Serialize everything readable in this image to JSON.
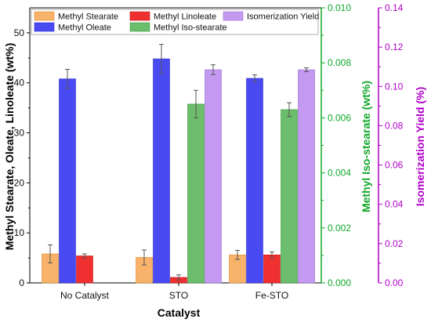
{
  "chart_data": {
    "type": "bar",
    "xlabel": "Catalyst",
    "categories": [
      "No Catalyst",
      "STO",
      "Fe-STO"
    ],
    "axes": {
      "left": {
        "label": "Methyl Stearate, Oleate, Linoleate (wt%)",
        "ylim": [
          0,
          55
        ],
        "ticks": [
          "0",
          "10",
          "20",
          "30",
          "40",
          "50"
        ],
        "tick_values": [
          0,
          10,
          20,
          30,
          40,
          50
        ],
        "color": "#000000"
      },
      "right1": {
        "label": "Methyl Iso-stearate (wt%)",
        "ylim": [
          0,
          0.01
        ],
        "ticks": [
          "0.000",
          "0.002",
          "0.004",
          "0.006",
          "0.008",
          "0.010"
        ],
        "tick_values": [
          0,
          0.002,
          0.004,
          0.006,
          0.008,
          0.01
        ],
        "color": "#11a82a"
      },
      "right2": {
        "label": "Isomerization Yield (%)",
        "ylim": [
          0,
          0.14
        ],
        "ticks": [
          "0.00",
          "0.02",
          "0.04",
          "0.06",
          "0.08",
          "0.10",
          "0.12",
          "0.14"
        ],
        "tick_values": [
          0,
          0.02,
          0.04,
          0.06,
          0.08,
          0.1,
          0.12,
          0.14
        ],
        "color": "#b000c8"
      }
    },
    "series": [
      {
        "name": "Methyl Stearate",
        "axis": "left",
        "color": "#f8b26a",
        "stroke": "#e08a30",
        "values": [
          5.8,
          5.1,
          5.6
        ],
        "errors": [
          1.8,
          1.5,
          0.9
        ]
      },
      {
        "name": "Methyl Oleate",
        "axis": "left",
        "color": "#4a4af2",
        "stroke": "#2a2ad0",
        "values": [
          40.8,
          44.8,
          40.9
        ],
        "errors": [
          1.9,
          2.9,
          0.7
        ]
      },
      {
        "name": "Methyl Linoleate",
        "axis": "left",
        "color": "#f03030",
        "stroke": "#c01818",
        "values": [
          5.4,
          1.1,
          5.6
        ],
        "errors": [
          0.4,
          0.5,
          0.6
        ]
      },
      {
        "name": "Methyl Iso-stearate",
        "axis": "right1",
        "color": "#6cbd6c",
        "stroke": "#3a9a3a",
        "values": [
          null,
          0.0065,
          0.0063
        ],
        "errors": [
          null,
          0.0005,
          0.00025
        ]
      },
      {
        "name": "Isomerization Yield",
        "axis": "right2",
        "color": "#c49af0",
        "stroke": "#9a6ad0",
        "values": [
          null,
          0.1085,
          0.1085
        ],
        "errors": [
          null,
          0.0025,
          0.001
        ]
      }
    ],
    "legend_placement": "top (inside plot, two rows)",
    "grid": false
  }
}
